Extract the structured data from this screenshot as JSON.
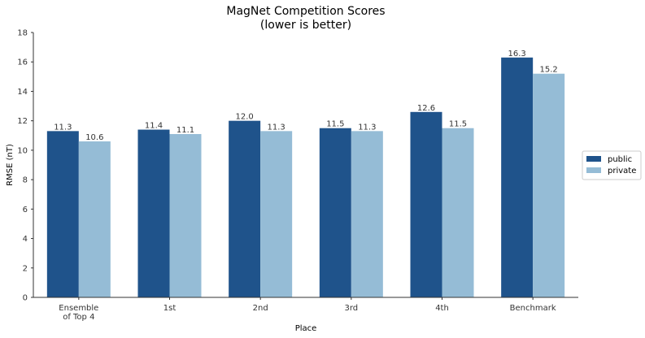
{
  "chart_data": {
    "type": "bar",
    "title": "MagNet Competition Scores",
    "subtitle": "(lower is better)",
    "xlabel": "Place",
    "ylabel": "RMSE (nT)",
    "ylim": [
      0,
      18
    ],
    "yticks": [
      0,
      2,
      4,
      6,
      8,
      10,
      12,
      14,
      16,
      18
    ],
    "categories": [
      [
        "Ensemble",
        "of Top 4"
      ],
      [
        "1st"
      ],
      [
        "2nd"
      ],
      [
        "3rd"
      ],
      [
        "4th"
      ],
      [
        "Benchmark"
      ]
    ],
    "series": [
      {
        "name": "public",
        "color": "#1f538b",
        "values": [
          11.3,
          11.4,
          12.0,
          11.5,
          12.6,
          16.3
        ]
      },
      {
        "name": "private",
        "color": "#95bcd6",
        "values": [
          10.6,
          11.1,
          11.3,
          11.3,
          11.5,
          15.2
        ]
      }
    ],
    "value_labels": [
      [
        "11.3",
        "11.4",
        "12.0",
        "11.5",
        "12.6",
        "16.3"
      ],
      [
        "10.6",
        "11.1",
        "11.3",
        "11.3",
        "11.5",
        "15.2"
      ]
    ],
    "legend": {
      "position": "right"
    },
    "grid": false
  }
}
